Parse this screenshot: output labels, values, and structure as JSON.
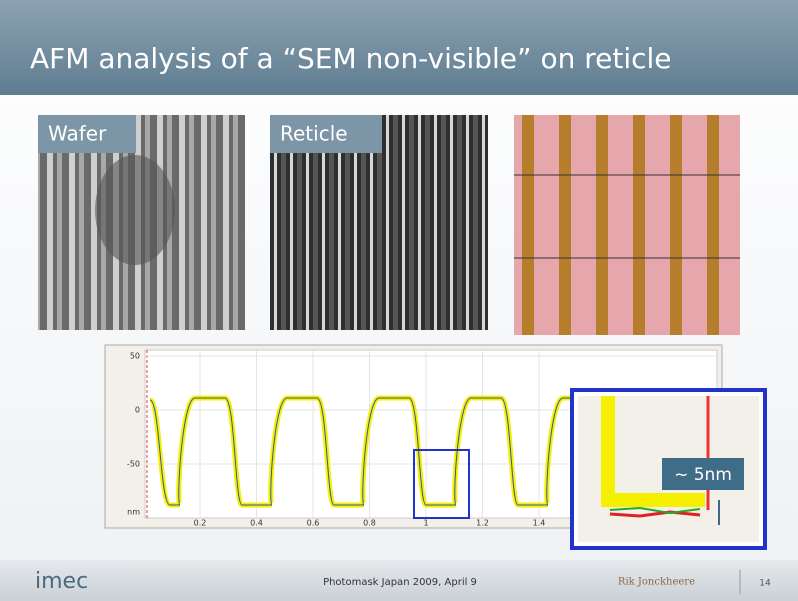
{
  "header": {
    "title": "AFM analysis of a “SEM non-visible” on reticle"
  },
  "images": {
    "wafer_label": "Wafer",
    "reticle_label": "Reticle"
  },
  "profile": {
    "y_tick_labels": [
      "50",
      "0",
      "-50",
      "nm"
    ],
    "x_tick_labels": [
      "0.2",
      "0.4",
      "0.6",
      "0.8",
      "1",
      "1.2",
      "1.4"
    ],
    "inset_annotation": "~ 5nm"
  },
  "footer": {
    "logo": "imec",
    "event": "Photomask Japan 2009, April 9",
    "author": "Rik Jonckheere",
    "page": "14"
  }
}
